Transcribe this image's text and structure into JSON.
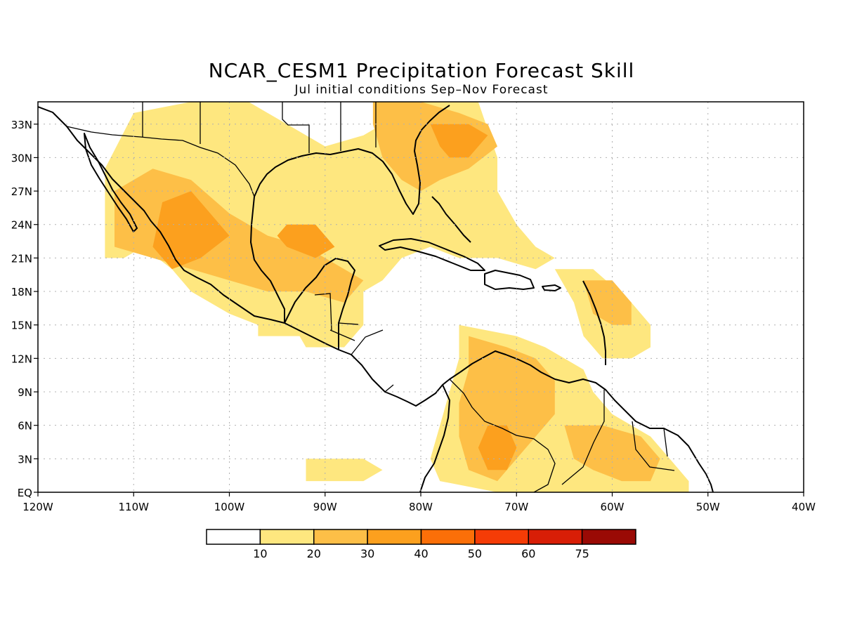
{
  "title": "NCAR_CESM1 Precipitation Forecast Skill",
  "subtitle": "Jul initial conditions  Sep–Nov Forecast",
  "map": {
    "lon_range": [
      -120,
      -40
    ],
    "lat_range": [
      0,
      35
    ],
    "lon_ticks": [
      {
        "value": -120,
        "label": "120W"
      },
      {
        "value": -110,
        "label": "110W"
      },
      {
        "value": -100,
        "label": "100W"
      },
      {
        "value": -90,
        "label": "90W"
      },
      {
        "value": -80,
        "label": "80W"
      },
      {
        "value": -70,
        "label": "70W"
      },
      {
        "value": -60,
        "label": "60W"
      },
      {
        "value": -50,
        "label": "50W"
      },
      {
        "value": -40,
        "label": "40W"
      }
    ],
    "lat_ticks": [
      {
        "value": 0,
        "label": "EQ"
      },
      {
        "value": 3,
        "label": "3N"
      },
      {
        "value": 6,
        "label": "6N"
      },
      {
        "value": 9,
        "label": "9N"
      },
      {
        "value": 12,
        "label": "12N"
      },
      {
        "value": 15,
        "label": "15N"
      },
      {
        "value": 18,
        "label": "18N"
      },
      {
        "value": 21,
        "label": "21N"
      },
      {
        "value": 24,
        "label": "24N"
      },
      {
        "value": 27,
        "label": "27N"
      },
      {
        "value": 30,
        "label": "30N"
      },
      {
        "value": 33,
        "label": "33N"
      }
    ],
    "grid": true
  },
  "colorbar": {
    "colors": [
      "#ffffff",
      "#fee77f",
      "#fdbf47",
      "#fca01e",
      "#fb6f08",
      "#f53c06",
      "#d81e06",
      "#9a0a05"
    ],
    "labels": [
      "10",
      "20",
      "30",
      "40",
      "50",
      "60",
      "75"
    ]
  },
  "chart_data": {
    "type": "heatmap",
    "variable": "Precipitation Forecast Skill",
    "units": "",
    "levels": [
      10,
      20,
      30,
      40,
      50,
      60,
      75
    ],
    "regions": [
      {
        "level": 10,
        "lonlat": [
          [
            -113,
            21
          ],
          [
            -113,
            29
          ],
          [
            -110,
            34
          ],
          [
            -104,
            35
          ],
          [
            -98,
            35
          ],
          [
            -94,
            33
          ],
          [
            -90,
            31
          ],
          [
            -86,
            32
          ],
          [
            -80,
            35
          ],
          [
            -74,
            35
          ],
          [
            -72,
            30
          ],
          [
            -72,
            27
          ],
          [
            -70,
            24
          ],
          [
            -68,
            22
          ],
          [
            -66,
            21
          ],
          [
            -68,
            20
          ],
          [
            -72,
            21
          ],
          [
            -76,
            21
          ],
          [
            -79,
            22
          ],
          [
            -82,
            21
          ],
          [
            -84,
            19
          ],
          [
            -86,
            18
          ],
          [
            -86,
            15
          ],
          [
            -88,
            13
          ],
          [
            -92,
            13
          ],
          [
            -94,
            16
          ],
          [
            -97,
            15
          ],
          [
            -100,
            16
          ],
          [
            -104,
            18
          ],
          [
            -106,
            20
          ],
          [
            -109,
            22
          ],
          [
            -111,
            21
          ]
        ]
      },
      {
        "level": 20,
        "lonlat": [
          [
            -112,
            22
          ],
          [
            -112,
            27
          ],
          [
            -108,
            29
          ],
          [
            -104,
            28
          ],
          [
            -100,
            25
          ],
          [
            -96,
            23
          ],
          [
            -92,
            22
          ],
          [
            -88,
            20
          ],
          [
            -86,
            19
          ],
          [
            -88,
            17
          ],
          [
            -92,
            18
          ],
          [
            -96,
            18
          ],
          [
            -100,
            19
          ],
          [
            -104,
            20
          ],
          [
            -108,
            21
          ]
        ]
      },
      {
        "level": 30,
        "lonlat": [
          [
            -108,
            22
          ],
          [
            -107,
            26
          ],
          [
            -104,
            27
          ],
          [
            -102,
            25
          ],
          [
            -100,
            23
          ],
          [
            -103,
            21
          ],
          [
            -106,
            20
          ]
        ]
      },
      {
        "level": 30,
        "lonlat": [
          [
            -95,
            23
          ],
          [
            -94,
            22
          ],
          [
            -91,
            21
          ],
          [
            -89,
            22
          ],
          [
            -91,
            24
          ],
          [
            -94,
            24
          ]
        ]
      },
      {
        "level": 20,
        "lonlat": [
          [
            -85,
            35
          ],
          [
            -80,
            35
          ],
          [
            -76,
            34
          ],
          [
            -73,
            33
          ],
          [
            -72,
            31
          ],
          [
            -75,
            29
          ],
          [
            -78,
            28
          ],
          [
            -80,
            27
          ],
          [
            -82,
            28
          ],
          [
            -84,
            30
          ],
          [
            -85,
            33
          ]
        ]
      },
      {
        "level": 30,
        "lonlat": [
          [
            -79,
            33
          ],
          [
            -75,
            33
          ],
          [
            -73,
            32
          ],
          [
            -75,
            30
          ],
          [
            -77,
            30
          ],
          [
            -78,
            31
          ]
        ]
      },
      {
        "level": 10,
        "lonlat": [
          [
            -76,
            15
          ],
          [
            -70,
            14
          ],
          [
            -67,
            13
          ],
          [
            -65,
            12
          ],
          [
            -63,
            11
          ],
          [
            -62,
            9
          ],
          [
            -60,
            7
          ],
          [
            -56,
            5
          ],
          [
            -54,
            3
          ],
          [
            -52,
            1
          ],
          [
            -52,
            0
          ],
          [
            -64,
            0
          ],
          [
            -72,
            0
          ],
          [
            -78,
            1
          ],
          [
            -79,
            3
          ],
          [
            -78,
            6
          ],
          [
            -77,
            9
          ],
          [
            -76,
            12
          ]
        ]
      },
      {
        "level": 20,
        "lonlat": [
          [
            -75,
            14
          ],
          [
            -71,
            13
          ],
          [
            -68,
            12
          ],
          [
            -66,
            10
          ],
          [
            -66,
            7
          ],
          [
            -68,
            5
          ],
          [
            -70,
            3
          ],
          [
            -72,
            1
          ],
          [
            -75,
            2
          ],
          [
            -76,
            5
          ],
          [
            -76,
            8
          ],
          [
            -75,
            11
          ]
        ]
      },
      {
        "level": 30,
        "lonlat": [
          [
            -73,
            6
          ],
          [
            -71,
            6
          ],
          [
            -70,
            4
          ],
          [
            -71,
            2
          ],
          [
            -73,
            2
          ],
          [
            -74,
            4
          ]
        ]
      },
      {
        "level": 20,
        "lonlat": [
          [
            -65,
            6
          ],
          [
            -61,
            6
          ],
          [
            -57,
            5
          ],
          [
            -55,
            3
          ],
          [
            -56,
            1
          ],
          [
            -59,
            1
          ],
          [
            -62,
            2
          ],
          [
            -64,
            3
          ]
        ]
      },
      {
        "level": 10,
        "lonlat": [
          [
            -66,
            20
          ],
          [
            -62,
            20
          ],
          [
            -58,
            17
          ],
          [
            -56,
            15
          ],
          [
            -56,
            13
          ],
          [
            -58,
            12
          ],
          [
            -61,
            12
          ],
          [
            -63,
            14
          ],
          [
            -64,
            17
          ]
        ]
      },
      {
        "level": 20,
        "lonlat": [
          [
            -63,
            19
          ],
          [
            -60,
            19
          ],
          [
            -58,
            17
          ],
          [
            -58,
            15
          ],
          [
            -60,
            15
          ],
          [
            -62,
            16
          ]
        ]
      },
      {
        "level": 10,
        "lonlat": [
          [
            -97,
            16
          ],
          [
            -93,
            16
          ],
          [
            -92,
            14
          ],
          [
            -95,
            14
          ],
          [
            -97,
            14
          ]
        ]
      },
      {
        "level": 10,
        "lonlat": [
          [
            -92,
            3
          ],
          [
            -86,
            3
          ],
          [
            -84,
            2
          ],
          [
            -86,
            1
          ],
          [
            -90,
            1
          ],
          [
            -92,
            1
          ]
        ]
      }
    ]
  }
}
